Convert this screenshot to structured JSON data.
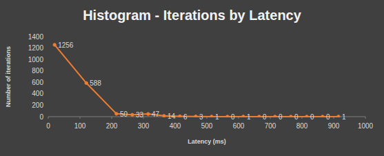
{
  "chart_data": {
    "type": "line",
    "title": "Histogram - Iterations by Latency",
    "x_label": "Latency (ms)",
    "y_label": "Number of iterations",
    "x": [
      20,
      120,
      215,
      265,
      315,
      365,
      415,
      465,
      515,
      565,
      615,
      665,
      715,
      765,
      815,
      865,
      915
    ],
    "values": [
      1256,
      588,
      50,
      33,
      47,
      14,
      6,
      3,
      1,
      0,
      1,
      0,
      0,
      0,
      0,
      0,
      1
    ],
    "color": "#ed7d31",
    "marker": "circle",
    "xlim": [
      0,
      1000
    ],
    "xticks": [
      0,
      100,
      200,
      300,
      400,
      500,
      600,
      700,
      800,
      900,
      1000
    ],
    "ylim": [
      0,
      1400
    ],
    "yticks": [
      0,
      200,
      400,
      600,
      800,
      1000,
      1200,
      1400
    ],
    "grid": false,
    "data_labels": true
  }
}
